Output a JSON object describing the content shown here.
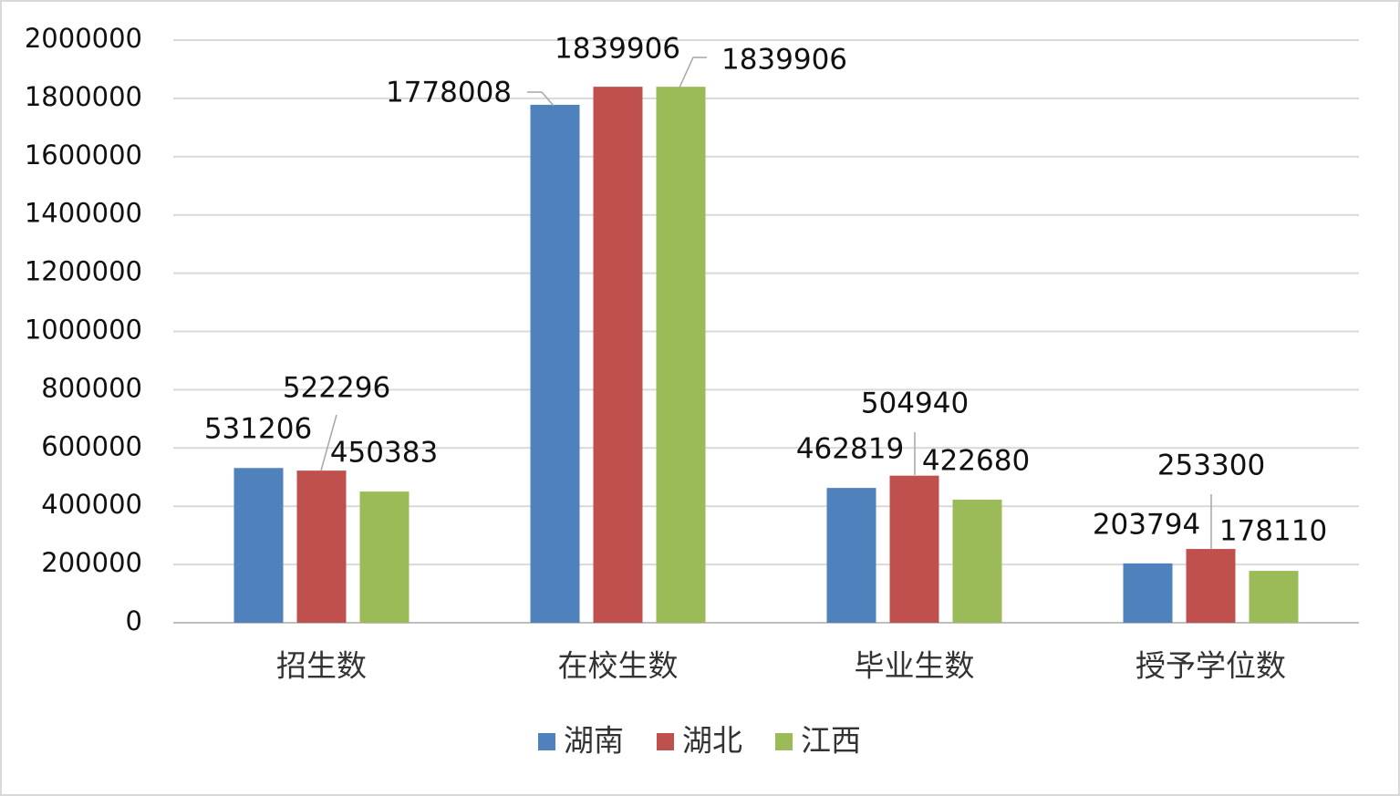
{
  "chart_data": {
    "type": "bar",
    "categories": [
      "招生数",
      "在校生数",
      "毕业生数",
      "授予学位数"
    ],
    "series": [
      {
        "name": "湖南",
        "color": "#4f81bd",
        "values": [
          531206,
          1778008,
          462819,
          203794
        ]
      },
      {
        "name": "湖北",
        "color": "#c0504d",
        "values": [
          522296,
          1839906,
          504940,
          253300
        ]
      },
      {
        "name": "江西",
        "color": "#9bbb59",
        "values": [
          450383,
          1839906,
          422680,
          178110
        ]
      }
    ],
    "ylim": [
      0,
      2000000
    ],
    "yticks": [
      0,
      200000,
      400000,
      600000,
      800000,
      1000000,
      1200000,
      1400000,
      1600000,
      1800000,
      2000000
    ],
    "grid": true,
    "legend": "bottom"
  }
}
